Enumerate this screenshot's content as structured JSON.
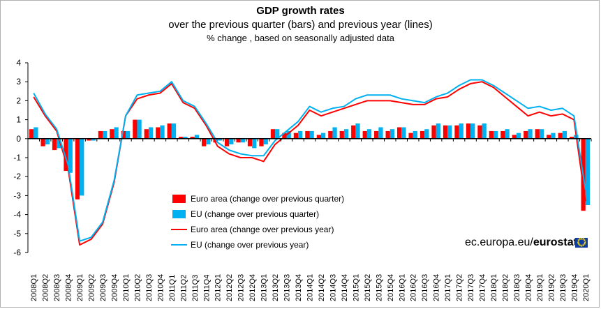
{
  "title": "GDP growth rates",
  "subtitle": "over the previous quarter (bars) and previous year (lines)",
  "note": "% change , based on seasonally adjusted data",
  "branding": {
    "domain": "ec.europa.eu/",
    "name": "eurostat"
  },
  "colors": {
    "euro_area": "#ff0000",
    "eu": "#00b0f0",
    "axis": "#000000",
    "grid": "#000000"
  },
  "chart_data": {
    "type": "bar",
    "ylim": [
      -6,
      4
    ],
    "yticks": [
      -6,
      -5,
      -4,
      -3,
      -2,
      -1,
      0,
      1,
      2,
      3,
      4
    ],
    "grid": false,
    "legend_position": "bottom-left",
    "categories": [
      "2008Q1",
      "2008Q2",
      "2008Q3",
      "2008Q4",
      "2009Q1",
      "2009Q2",
      "2009Q3",
      "2009Q4",
      "2010Q1",
      "2010Q2",
      "2010Q3",
      "2010Q4",
      "2011Q1",
      "2011Q2",
      "2011Q3",
      "2011Q4",
      "2012Q1",
      "2012Q2",
      "2012Q3",
      "2012Q4",
      "2013Q1",
      "2013Q2",
      "2013Q3",
      "2013Q4",
      "2014Q1",
      "2014Q2",
      "2014Q3",
      "2014Q4",
      "2015Q1",
      "2015Q2",
      "2015Q3",
      "2015Q4",
      "2016Q1",
      "2016Q2",
      "2016Q3",
      "2016Q4",
      "2017Q1",
      "2017Q2",
      "2017Q3",
      "2017Q4",
      "2018Q1",
      "2018Q2",
      "2018Q3",
      "2018Q4",
      "2019Q1",
      "2019Q2",
      "2019Q3",
      "2019Q4",
      "2020Q1"
    ],
    "series": [
      {
        "name": "Euro area (change over previous quarter)",
        "kind": "bar",
        "color": "#ff0000",
        "values": [
          0.5,
          -0.4,
          -0.6,
          -1.7,
          -3.2,
          -0.1,
          0.4,
          0.5,
          0.4,
          1.0,
          0.5,
          0.6,
          0.8,
          0.1,
          0.1,
          -0.4,
          -0.2,
          -0.4,
          -0.2,
          -0.4,
          -0.4,
          0.5,
          0.3,
          0.3,
          0.4,
          0.2,
          0.4,
          0.4,
          0.7,
          0.4,
          0.4,
          0.4,
          0.6,
          0.3,
          0.4,
          0.7,
          0.7,
          0.7,
          0.8,
          0.7,
          0.4,
          0.4,
          0.2,
          0.4,
          0.5,
          0.2,
          0.3,
          0.1,
          -3.8
        ]
      },
      {
        "name": "EU (change over previous quarter)",
        "kind": "bar",
        "color": "#00b0f0",
        "values": [
          0.6,
          -0.3,
          -0.5,
          -1.8,
          -3.0,
          -0.1,
          0.4,
          0.6,
          0.4,
          1.0,
          0.6,
          0.7,
          0.8,
          0.1,
          0.2,
          -0.3,
          -0.1,
          -0.3,
          -0.2,
          -0.5,
          -0.3,
          0.5,
          0.4,
          0.4,
          0.4,
          0.3,
          0.6,
          0.5,
          0.8,
          0.5,
          0.6,
          0.5,
          0.6,
          0.4,
          0.5,
          0.8,
          0.7,
          0.8,
          0.8,
          0.8,
          0.4,
          0.5,
          0.3,
          0.5,
          0.5,
          0.3,
          0.4,
          0.2,
          -3.5
        ]
      },
      {
        "name": "Euro area (change over previous year)",
        "kind": "line",
        "color": "#ff0000",
        "values": [
          2.2,
          1.2,
          0.4,
          -1.6,
          -5.6,
          -5.3,
          -4.5,
          -2.3,
          1.2,
          2.1,
          2.3,
          2.4,
          2.9,
          1.9,
          1.6,
          0.7,
          -0.4,
          -0.8,
          -1.0,
          -1.0,
          -1.2,
          -0.3,
          0.2,
          0.7,
          1.5,
          1.2,
          1.4,
          1.6,
          1.8,
          2.0,
          2.0,
          2.0,
          1.9,
          1.8,
          1.8,
          2.1,
          2.2,
          2.6,
          2.9,
          3.0,
          2.7,
          2.2,
          1.7,
          1.2,
          1.4,
          1.2,
          1.3,
          1.0,
          -3.3
        ]
      },
      {
        "name": "EU (change over previous year)",
        "kind": "line",
        "color": "#00b0f0",
        "values": [
          2.4,
          1.3,
          0.5,
          -1.4,
          -5.4,
          -5.2,
          -4.4,
          -2.2,
          1.2,
          2.3,
          2.4,
          2.5,
          3.0,
          2.0,
          1.7,
          0.8,
          -0.2,
          -0.6,
          -0.8,
          -0.9,
          -0.9,
          -0.1,
          0.4,
          0.9,
          1.7,
          1.4,
          1.6,
          1.7,
          2.1,
          2.3,
          2.3,
          2.3,
          2.1,
          2.0,
          1.9,
          2.2,
          2.4,
          2.8,
          3.1,
          3.1,
          2.8,
          2.4,
          2.0,
          1.6,
          1.7,
          1.5,
          1.6,
          1.2,
          -2.7
        ]
      }
    ]
  }
}
